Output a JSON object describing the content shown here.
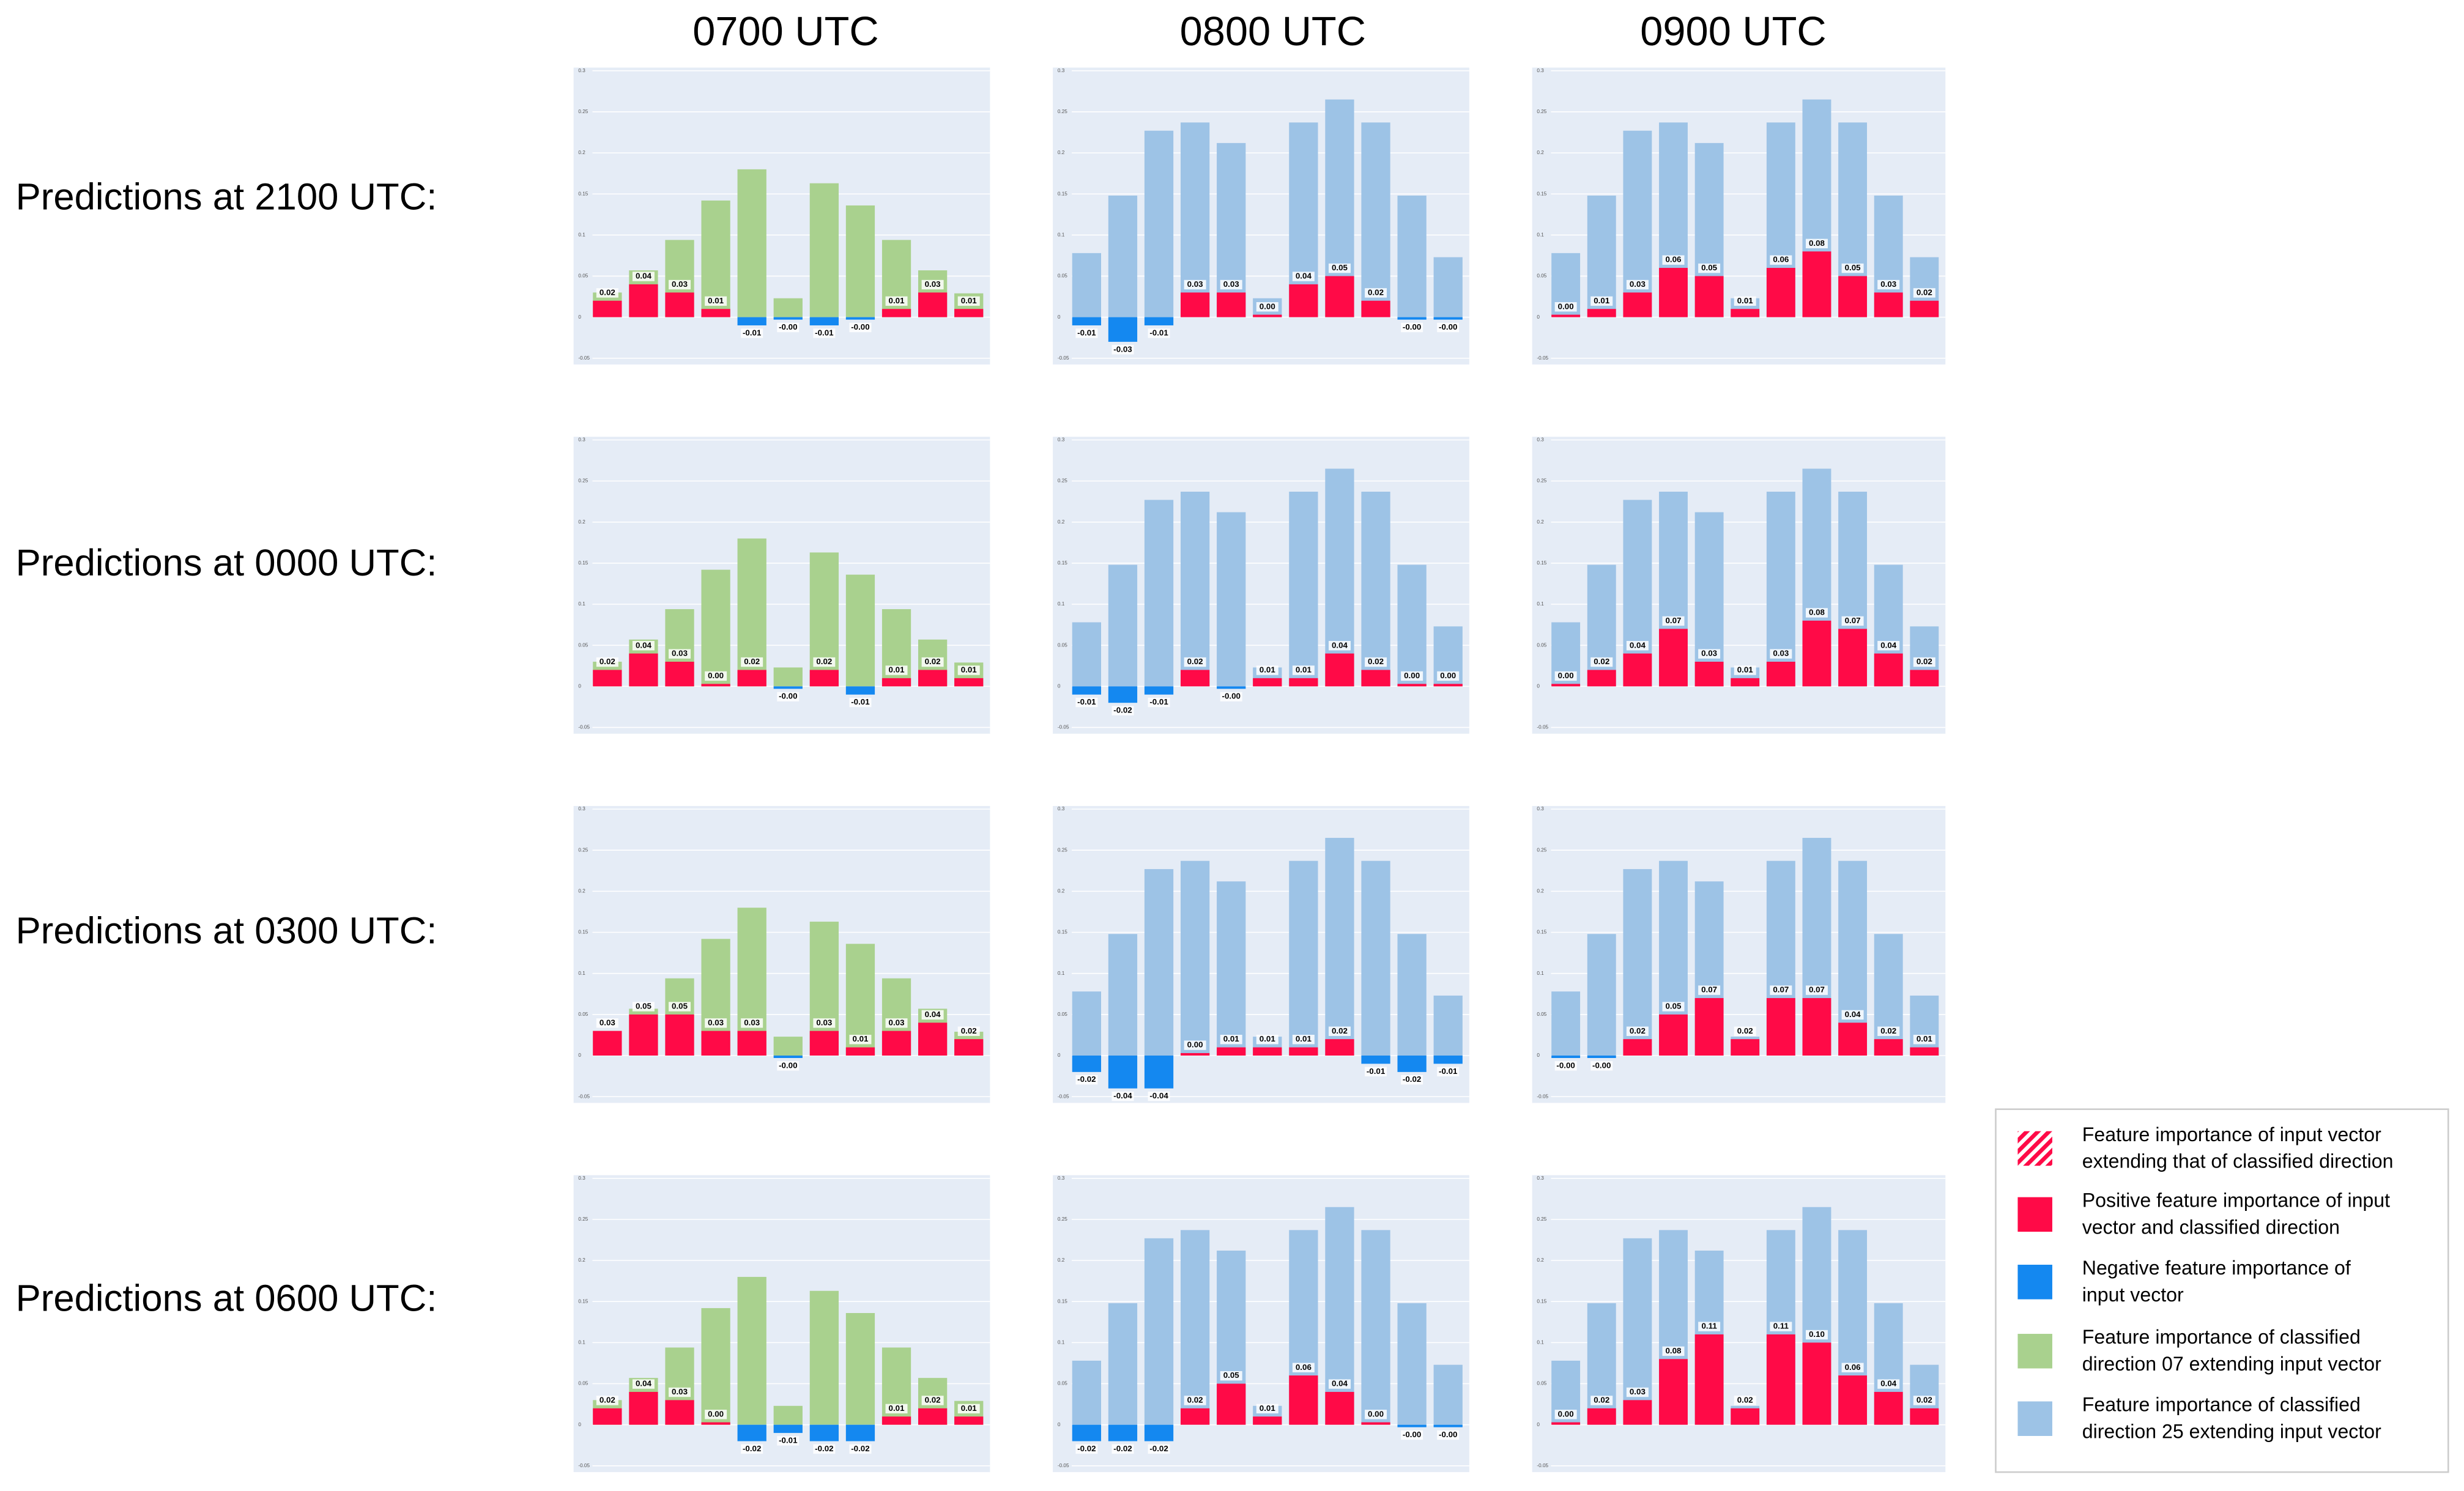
{
  "columns": [
    "0700 UTC",
    "0800 UTC",
    "0900 UTC"
  ],
  "rows": [
    "Predictions at 2100 UTC:",
    "Predictions at 0000 UTC:",
    "Predictions at 0300 UTC:",
    "Predictions at 0600 UTC:"
  ],
  "legend": [
    {
      "lines": [
        "Feature importance of input vector",
        "extending that of classified direction"
      ],
      "color": "#ff0a47",
      "hatch": true
    },
    {
      "lines": [
        "Positive feature importance of input",
        "vector and classified direction"
      ],
      "color": "#ff0a47"
    },
    {
      "lines": [
        "Negative feature importance of",
        "input vector"
      ],
      "color": "#1488f0"
    },
    {
      "lines": [
        "Feature importance of classified",
        "direction 07 extending input vector"
      ],
      "color": "#a9d18e"
    },
    {
      "lines": [
        "Feature importance of classified",
        "direction 25 extending input vector"
      ],
      "color": "#9dc3e6"
    }
  ],
  "chart_data": [
    {
      "type": "bar",
      "ylim": [
        -0.05,
        0.3
      ],
      "yticks": [
        -0.05,
        0,
        0.05,
        0.1,
        0.15,
        0.2,
        0.25,
        0.3
      ],
      "background": {
        "color": "#a9d18e",
        "values": [
          0.03,
          0.057,
          0.094,
          0.142,
          0.18,
          0.023,
          0.163,
          0.136,
          0.094,
          0.057,
          0.029
        ]
      },
      "overlay": {
        "color": "#ff0a47",
        "negative_color": "#1488f0",
        "values": [
          0.02,
          0.04,
          0.03,
          0.01,
          -0.01,
          -0.003,
          -0.01,
          -0.003,
          0.01,
          0.03,
          0.01
        ],
        "value_labels": [
          "0.02",
          "0.04",
          "0.03",
          "0.01",
          "-0.01",
          "-0.00",
          "-0.01",
          "-0.00",
          "0.01",
          "0.03",
          "0.01"
        ]
      }
    },
    {
      "type": "bar",
      "ylim": [
        -0.05,
        0.3
      ],
      "yticks": [
        -0.05,
        0,
        0.05,
        0.1,
        0.15,
        0.2,
        0.25,
        0.3
      ],
      "background": {
        "color": "#9dc3e6",
        "values": [
          0.078,
          0.148,
          0.227,
          0.237,
          0.212,
          0.023,
          0.237,
          0.265,
          0.237,
          0.148,
          0.073
        ]
      },
      "overlay": {
        "color": "#ff0a47",
        "negative_color": "#1488f0",
        "values": [
          -0.01,
          -0.03,
          -0.01,
          0.03,
          0.03,
          0.003,
          0.04,
          0.05,
          0.02,
          -0.003,
          -0.003
        ],
        "value_labels": [
          "-0.01",
          "-0.03",
          "-0.01",
          "0.03",
          "0.03",
          "0.00",
          "0.04",
          "0.05",
          "0.02",
          "-0.00",
          "-0.00"
        ]
      }
    },
    {
      "type": "bar",
      "ylim": [
        -0.05,
        0.3
      ],
      "yticks": [
        -0.05,
        0,
        0.05,
        0.1,
        0.15,
        0.2,
        0.25,
        0.3
      ],
      "background": {
        "color": "#9dc3e6",
        "values": [
          0.078,
          0.148,
          0.227,
          0.237,
          0.212,
          0.023,
          0.237,
          0.265,
          0.237,
          0.148,
          0.073
        ]
      },
      "overlay": {
        "color": "#ff0a47",
        "negative_color": "#1488f0",
        "values": [
          0.003,
          0.01,
          0.03,
          0.06,
          0.05,
          0.01,
          0.06,
          0.08,
          0.05,
          0.03,
          0.02
        ],
        "value_labels": [
          "0.00",
          "0.01",
          "0.03",
          "0.06",
          "0.05",
          "0.01",
          "0.06",
          "0.08",
          "0.05",
          "0.03",
          "0.02"
        ]
      }
    },
    {
      "type": "bar",
      "ylim": [
        -0.05,
        0.3
      ],
      "yticks": [
        -0.05,
        0,
        0.05,
        0.1,
        0.15,
        0.2,
        0.25,
        0.3
      ],
      "background": {
        "color": "#a9d18e",
        "values": [
          0.03,
          0.057,
          0.094,
          0.142,
          0.18,
          0.023,
          0.163,
          0.136,
          0.094,
          0.057,
          0.029
        ]
      },
      "overlay": {
        "color": "#ff0a47",
        "negative_color": "#1488f0",
        "values": [
          0.02,
          0.04,
          0.03,
          0.003,
          0.02,
          -0.003,
          0.02,
          -0.01,
          0.01,
          0.02,
          0.01
        ],
        "value_labels": [
          "0.02",
          "0.04",
          "0.03",
          "0.00",
          "0.02",
          "-0.00",
          "0.02",
          "-0.01",
          "0.01",
          "0.02",
          "0.01"
        ]
      }
    },
    {
      "type": "bar",
      "ylim": [
        -0.05,
        0.3
      ],
      "yticks": [
        -0.05,
        0,
        0.05,
        0.1,
        0.15,
        0.2,
        0.25,
        0.3
      ],
      "background": {
        "color": "#9dc3e6",
        "values": [
          0.078,
          0.148,
          0.227,
          0.237,
          0.212,
          0.023,
          0.237,
          0.265,
          0.237,
          0.148,
          0.073
        ]
      },
      "overlay": {
        "color": "#ff0a47",
        "negative_color": "#1488f0",
        "values": [
          -0.01,
          -0.02,
          -0.01,
          0.02,
          -0.003,
          0.01,
          0.01,
          0.04,
          0.02,
          0.003,
          0.003
        ],
        "value_labels": [
          "-0.01",
          "-0.02",
          "-0.01",
          "0.02",
          "-0.00",
          "0.01",
          "0.01",
          "0.04",
          "0.02",
          "0.00",
          "0.00"
        ]
      }
    },
    {
      "type": "bar",
      "ylim": [
        -0.05,
        0.3
      ],
      "yticks": [
        -0.05,
        0,
        0.05,
        0.1,
        0.15,
        0.2,
        0.25,
        0.3
      ],
      "background": {
        "color": "#9dc3e6",
        "values": [
          0.078,
          0.148,
          0.227,
          0.237,
          0.212,
          0.023,
          0.237,
          0.265,
          0.237,
          0.148,
          0.073
        ]
      },
      "overlay": {
        "color": "#ff0a47",
        "negative_color": "#1488f0",
        "values": [
          0.003,
          0.02,
          0.04,
          0.07,
          0.03,
          0.01,
          0.03,
          0.08,
          0.07,
          0.04,
          0.02
        ],
        "value_labels": [
          "0.00",
          "0.02",
          "0.04",
          "0.07",
          "0.03",
          "0.01",
          "0.03",
          "0.08",
          "0.07",
          "0.04",
          "0.02"
        ]
      }
    },
    {
      "type": "bar",
      "ylim": [
        -0.05,
        0.3
      ],
      "yticks": [
        -0.05,
        0,
        0.05,
        0.1,
        0.15,
        0.2,
        0.25,
        0.3
      ],
      "background": {
        "color": "#a9d18e",
        "values": [
          0.03,
          0.057,
          0.094,
          0.142,
          0.18,
          0.023,
          0.163,
          0.136,
          0.094,
          0.057,
          0.029
        ]
      },
      "overlay": {
        "color": "#ff0a47",
        "negative_color": "#1488f0",
        "values": [
          0.03,
          0.05,
          0.05,
          0.03,
          0.03,
          -0.003,
          0.03,
          0.01,
          0.03,
          0.04,
          0.02
        ],
        "value_labels": [
          "0.03",
          "0.05",
          "0.05",
          "0.03",
          "0.03",
          "-0.00",
          "0.03",
          "0.01",
          "0.03",
          "0.04",
          "0.02"
        ]
      }
    },
    {
      "type": "bar",
      "ylim": [
        -0.05,
        0.3
      ],
      "yticks": [
        -0.05,
        0,
        0.05,
        0.1,
        0.15,
        0.2,
        0.25,
        0.3
      ],
      "background": {
        "color": "#9dc3e6",
        "values": [
          0.078,
          0.148,
          0.227,
          0.237,
          0.212,
          0.023,
          0.237,
          0.265,
          0.237,
          0.148,
          0.073
        ]
      },
      "overlay": {
        "color": "#ff0a47",
        "negative_color": "#1488f0",
        "values": [
          -0.02,
          -0.04,
          -0.04,
          0.003,
          0.01,
          0.01,
          0.01,
          0.02,
          -0.01,
          -0.02,
          -0.01
        ],
        "value_labels": [
          "-0.02",
          "-0.04",
          "-0.04",
          "0.00",
          "0.01",
          "0.01",
          "0.01",
          "0.02",
          "-0.01",
          "-0.02",
          "-0.01"
        ]
      }
    },
    {
      "type": "bar",
      "ylim": [
        -0.05,
        0.3
      ],
      "yticks": [
        -0.05,
        0,
        0.05,
        0.1,
        0.15,
        0.2,
        0.25,
        0.3
      ],
      "background": {
        "color": "#9dc3e6",
        "values": [
          0.078,
          0.148,
          0.227,
          0.237,
          0.212,
          0.023,
          0.237,
          0.265,
          0.237,
          0.148,
          0.073
        ]
      },
      "overlay": {
        "color": "#ff0a47",
        "negative_color": "#1488f0",
        "values": [
          -0.003,
          -0.003,
          0.02,
          0.05,
          0.07,
          0.02,
          0.07,
          0.07,
          0.04,
          0.02,
          0.01
        ],
        "value_labels": [
          "-0.00",
          "-0.00",
          "0.02",
          "0.05",
          "0.07",
          "0.02",
          "0.07",
          "0.07",
          "0.04",
          "0.02",
          "0.01"
        ]
      }
    },
    {
      "type": "bar",
      "ylim": [
        -0.05,
        0.3
      ],
      "yticks": [
        -0.05,
        0,
        0.05,
        0.1,
        0.15,
        0.2,
        0.25,
        0.3
      ],
      "background": {
        "color": "#a9d18e",
        "values": [
          0.03,
          0.057,
          0.094,
          0.142,
          0.18,
          0.023,
          0.163,
          0.136,
          0.094,
          0.057,
          0.029
        ]
      },
      "overlay": {
        "color": "#ff0a47",
        "negative_color": "#1488f0",
        "values": [
          0.02,
          0.04,
          0.03,
          0.003,
          -0.02,
          -0.01,
          -0.02,
          -0.02,
          0.01,
          0.02,
          0.01
        ],
        "value_labels": [
          "0.02",
          "0.04",
          "0.03",
          "0.00",
          "-0.02",
          "-0.01",
          "-0.02",
          "-0.02",
          "0.01",
          "0.02",
          "0.01"
        ]
      }
    },
    {
      "type": "bar",
      "ylim": [
        -0.05,
        0.3
      ],
      "yticks": [
        -0.05,
        0,
        0.05,
        0.1,
        0.15,
        0.2,
        0.25,
        0.3
      ],
      "background": {
        "color": "#9dc3e6",
        "values": [
          0.078,
          0.148,
          0.227,
          0.237,
          0.212,
          0.023,
          0.237,
          0.265,
          0.237,
          0.148,
          0.073
        ]
      },
      "overlay": {
        "color": "#ff0a47",
        "negative_color": "#1488f0",
        "values": [
          -0.02,
          -0.02,
          -0.02,
          0.02,
          0.05,
          0.01,
          0.06,
          0.04,
          0.003,
          -0.003,
          -0.003
        ],
        "value_labels": [
          "-0.02",
          "-0.02",
          "-0.02",
          "0.02",
          "0.05",
          "0.01",
          "0.06",
          "0.04",
          "0.00",
          "-0.00",
          "-0.00"
        ]
      }
    },
    {
      "type": "bar",
      "ylim": [
        -0.05,
        0.3
      ],
      "yticks": [
        -0.05,
        0,
        0.05,
        0.1,
        0.15,
        0.2,
        0.25,
        0.3
      ],
      "background": {
        "color": "#9dc3e6",
        "values": [
          0.078,
          0.148,
          0.227,
          0.237,
          0.212,
          0.023,
          0.237,
          0.265,
          0.237,
          0.148,
          0.073
        ]
      },
      "overlay": {
        "color": "#ff0a47",
        "negative_color": "#1488f0",
        "values": [
          0.003,
          0.02,
          0.03,
          0.08,
          0.11,
          0.02,
          0.11,
          0.1,
          0.06,
          0.04,
          0.02
        ],
        "value_labels": [
          "0.00",
          "0.02",
          "0.03",
          "0.08",
          "0.11",
          "0.02",
          "0.11",
          "0.10",
          "0.06",
          "0.04",
          "0.02"
        ]
      }
    }
  ]
}
